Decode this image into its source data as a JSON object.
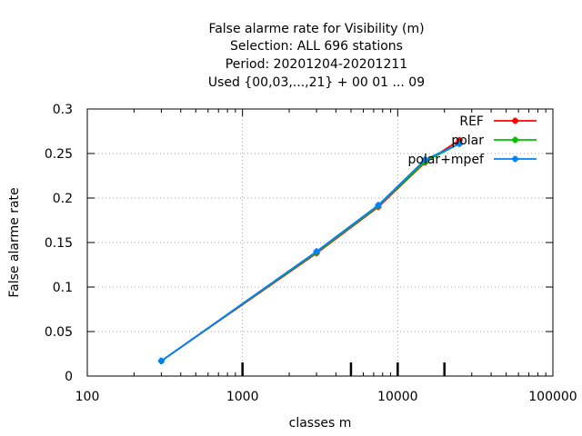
{
  "chart_data": {
    "type": "line",
    "title_lines": [
      "False alarme rate  for Visibility (m)",
      "Selection: ALL    696 stations",
      "Period: 20201204-20201211",
      "Used {00,03,...,21} + 00 01 ... 09"
    ],
    "xlabel": "classes m",
    "ylabel": "False alarme rate",
    "x_scale": "log",
    "xlim": [
      100,
      100000
    ],
    "ylim": [
      0,
      0.3
    ],
    "x_ticks": [
      {
        "value": 100,
        "label": "100"
      },
      {
        "value": 1000,
        "label": "1000"
      },
      {
        "value": 10000,
        "label": "10000"
      },
      {
        "value": 100000,
        "label": "100000"
      }
    ],
    "y_ticks": [
      {
        "value": 0,
        "label": "0"
      },
      {
        "value": 0.05,
        "label": "0.05"
      },
      {
        "value": 0.1,
        "label": "0.1"
      },
      {
        "value": 0.15,
        "label": "0.15"
      },
      {
        "value": 0.2,
        "label": "0.2"
      },
      {
        "value": 0.25,
        "label": "0.25"
      },
      {
        "value": 0.3,
        "label": "0.3"
      }
    ],
    "grid": true,
    "legend_position": "top-right",
    "threshold_marks": [
      1000,
      5000,
      10000,
      20000
    ],
    "x": [
      300,
      3000,
      7500,
      15000,
      25000
    ],
    "series": [
      {
        "name": "REF",
        "color": "#ff0000",
        "values": [
          0.017,
          0.138,
          0.19,
          0.24,
          0.265
        ]
      },
      {
        "name": "polar",
        "color": "#00c000",
        "values": [
          0.017,
          0.139,
          0.191,
          0.241,
          0.261
        ]
      },
      {
        "name": "polar+mpef",
        "color": "#0080ff",
        "values": [
          0.017,
          0.14,
          0.192,
          0.243,
          0.261
        ]
      }
    ]
  }
}
